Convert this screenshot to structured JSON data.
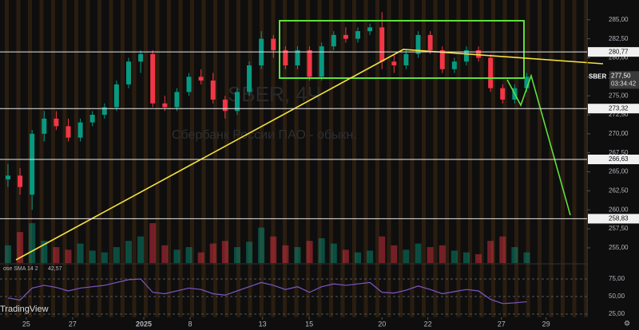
{
  "chart_data": {
    "type": "candlestick",
    "symbol": "SBER",
    "watermark": "SBER, 4Ч",
    "description": "Сбербанк России ПАО - обыкн.",
    "brand": "TradingView",
    "timer": "03:34:42",
    "up_color": "#089981",
    "down_color": "#f23645",
    "open": [
      264,
      264.5,
      262,
      270,
      272,
      271,
      269.5,
      271.5,
      272.5,
      273.5,
      276.5,
      279.5,
      280.5,
      274,
      273.5,
      275.5,
      277.5,
      277,
      274.5,
      273,
      275.5,
      279,
      282.5,
      281,
      279,
      281,
      277.5,
      281.5,
      283,
      282.5,
      283.5,
      284,
      279.5,
      279,
      280.5,
      283,
      281,
      278.5,
      279.5,
      281,
      280,
      276,
      274.5,
      276
    ],
    "high": [
      266,
      265.5,
      270.5,
      273,
      273,
      272,
      272,
      273,
      274,
      277,
      280,
      281,
      281,
      275,
      276,
      278,
      278.5,
      278,
      275,
      276,
      279.5,
      283.5,
      283,
      281.5,
      281.5,
      281.5,
      282,
      283.5,
      284,
      284,
      284.5,
      286,
      280.5,
      281,
      283.5,
      283.5,
      281.5,
      280,
      281.5,
      281.5,
      280.5,
      276.5,
      276.5,
      278
    ],
    "low": [
      263,
      262,
      260,
      269,
      270.5,
      269,
      269,
      271,
      272,
      273,
      276,
      278,
      273.5,
      273,
      273,
      275,
      276.5,
      274,
      272,
      272.5,
      275,
      278.5,
      280,
      278.5,
      278.5,
      277,
      277,
      281,
      282,
      282,
      283,
      278.5,
      278,
      278.5,
      280,
      280.5,
      278,
      278,
      279,
      279.5,
      275.5,
      274,
      274,
      275.5
    ],
    "close": [
      264.5,
      263,
      270,
      272,
      271,
      269.5,
      271.5,
      272.5,
      273.5,
      276.5,
      279.5,
      280.5,
      274,
      273.5,
      275.5,
      277.5,
      277,
      274.5,
      273,
      275.5,
      279,
      282.5,
      281,
      279,
      281,
      277.5,
      281.5,
      283,
      282.5,
      283.5,
      284,
      279.5,
      279,
      280.5,
      283,
      281,
      278.5,
      279.5,
      281,
      280,
      276,
      274.5,
      276,
      277.5
    ],
    "volume": [
      20,
      35,
      45,
      25,
      18,
      15,
      22,
      14,
      12,
      18,
      25,
      30,
      45,
      20,
      15,
      18,
      12,
      22,
      25,
      18,
      24,
      40,
      30,
      20,
      18,
      25,
      28,
      22,
      15,
      12,
      14,
      30,
      20,
      15,
      22,
      18,
      20,
      14,
      12,
      10,
      25,
      30,
      18,
      12
    ],
    "xlim": [
      -0.66,
      48.0
    ],
    "xticks": [
      {
        "value": 1.52,
        "label": "25"
      },
      {
        "value": 5.36,
        "label": "27"
      },
      {
        "value": 11.26,
        "label": "2025"
      },
      {
        "value": 15.1,
        "label": "8"
      },
      {
        "value": 21.1,
        "label": "13"
      },
      {
        "value": 24.97,
        "label": "15"
      },
      {
        "value": 31.0,
        "label": "20"
      },
      {
        "value": 34.8,
        "label": "22"
      },
      {
        "value": 40.9,
        "label": "27"
      },
      {
        "value": 44.6,
        "label": "29"
      }
    ],
    "ylim": [
      253,
      287.6
    ],
    "yticks": [
      {
        "value": 255,
        "label": "255,00"
      },
      {
        "value": 257.5,
        "label": "257,50"
      },
      {
        "value": 260,
        "label": "260,00"
      },
      {
        "value": 262.5,
        "label": "262,50"
      },
      {
        "value": 265,
        "label": "265,00"
      },
      {
        "value": 267.5,
        "label": "267,50"
      },
      {
        "value": 270,
        "label": "270,00"
      },
      {
        "value": 272.5,
        "label": "272,50"
      },
      {
        "value": 275,
        "label": "275,00"
      },
      {
        "value": 277.5,
        "label": "277,50"
      },
      {
        "value": 280,
        "label": "280,00"
      },
      {
        "value": 282.5,
        "label": "282,50"
      },
      {
        "value": 285,
        "label": "285,00"
      }
    ],
    "levels": [
      {
        "value": 280.77,
        "label": "280,77"
      },
      {
        "value": 273.32,
        "label": "273,32"
      },
      {
        "value": 266.63,
        "label": "266,63"
      },
      {
        "value": 258.83,
        "label": "258,83"
      }
    ],
    "last_price": {
      "value": 277.5,
      "label": "277,50"
    },
    "rsi": {
      "name": "ose SMA 14 2",
      "color": "#7e57c2",
      "current_label": "42,57",
      "values": [
        48,
        45,
        62,
        66,
        63,
        58,
        62,
        64,
        66,
        70,
        74,
        75,
        56,
        54,
        58,
        62,
        60,
        54,
        52,
        58,
        64,
        70,
        66,
        60,
        64,
        56,
        64,
        68,
        66,
        68,
        70,
        56,
        55,
        59,
        65,
        60,
        54,
        57,
        60,
        58,
        46,
        40,
        41,
        42.57
      ],
      "ylim": [
        20.5,
        94.3
      ],
      "yticks": [
        {
          "value": 25,
          "label": "25,00"
        },
        {
          "value": 50,
          "label": "50,00"
        },
        {
          "value": 75,
          "label": "75,00"
        }
      ]
    }
  }
}
